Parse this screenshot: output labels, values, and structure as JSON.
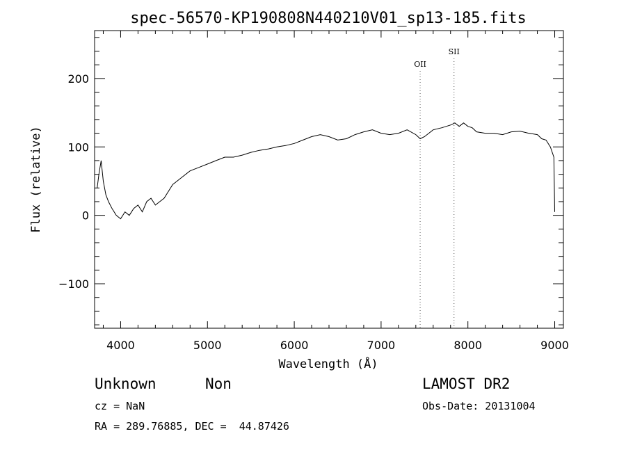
{
  "chart_data": {
    "type": "line",
    "title": "spec-56570-KP190808N440210V01_sp13-185.fits",
    "xlabel": "Wavelength (Å)",
    "ylabel": "Flux (relative)",
    "xlim": [
      3700,
      9100
    ],
    "ylim": [
      -165,
      270
    ],
    "xticks": [
      4000,
      5000,
      6000,
      7000,
      8000,
      9000
    ],
    "yticks": [
      -100,
      0,
      100,
      200
    ],
    "grid": false,
    "series": [
      {
        "x": [
          3730,
          3750,
          3775,
          3800,
          3830,
          3860,
          3900,
          3950,
          4000,
          4050,
          4100,
          4150,
          4200,
          4250,
          4300,
          4350,
          4400,
          4450,
          4500,
          4600,
          4700,
          4800,
          4900,
          5000,
          5100,
          5200,
          5300,
          5400,
          5500,
          5600,
          5700,
          5800,
          5900,
          6000,
          6100,
          6200,
          6300,
          6400,
          6500,
          6600,
          6700,
          6800,
          6900,
          7000,
          7100,
          7200,
          7300,
          7400,
          7450,
          7500,
          7550,
          7600,
          7700,
          7800,
          7850,
          7900,
          7950,
          8000,
          8050,
          8100,
          8200,
          8300,
          8400,
          8500,
          8600,
          8700,
          8800,
          8850,
          8900,
          8950,
          8990,
          9000
        ],
        "y": [
          40,
          60,
          80,
          50,
          30,
          20,
          10,
          0,
          -5,
          5,
          0,
          10,
          15,
          5,
          20,
          25,
          15,
          20,
          25,
          45,
          55,
          65,
          70,
          75,
          80,
          85,
          85,
          88,
          92,
          95,
          97,
          100,
          102,
          105,
          110,
          115,
          118,
          115,
          110,
          112,
          118,
          122,
          125,
          120,
          118,
          120,
          125,
          118,
          112,
          115,
          120,
          125,
          128,
          132,
          135,
          130,
          135,
          130,
          128,
          122,
          120,
          120,
          118,
          122,
          123,
          120,
          118,
          112,
          110,
          100,
          85,
          5
        ]
      }
    ],
    "lines": [
      {
        "label": "OII",
        "x": 7450
      },
      {
        "label": "SII",
        "x": 7840
      }
    ]
  },
  "info": {
    "class": "Unknown",
    "subclass": "Non",
    "survey": "LAMOST DR2",
    "cz": "cz = NaN",
    "obs_date": "Obs-Date: 20131004",
    "coords": "RA = 289.76885, DEC =  44.87426"
  }
}
